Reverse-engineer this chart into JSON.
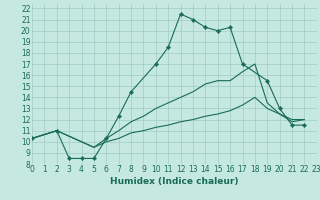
{
  "bg_color": "#c5e8e0",
  "line_color": "#1a6b58",
  "grid_color": "#a0ccc4",
  "xlabel": "Humidex (Indice chaleur)",
  "xlim": [
    0,
    23
  ],
  "ylim": [
    8,
    22.4
  ],
  "xticks": [
    0,
    1,
    2,
    3,
    4,
    5,
    6,
    7,
    8,
    9,
    10,
    11,
    12,
    13,
    14,
    15,
    16,
    17,
    18,
    19,
    20,
    21,
    22,
    23
  ],
  "yticks": [
    8,
    9,
    10,
    11,
    12,
    13,
    14,
    15,
    16,
    17,
    18,
    19,
    20,
    21,
    22
  ],
  "line1_x": [
    0,
    2,
    3,
    4,
    5,
    6,
    7,
    8,
    10,
    11,
    12,
    13,
    14,
    15,
    16,
    17,
    19,
    20,
    21,
    22
  ],
  "line1_y": [
    10.3,
    11.0,
    8.5,
    8.5,
    8.5,
    10.3,
    12.3,
    14.5,
    17.0,
    18.5,
    21.5,
    21.0,
    20.3,
    20.0,
    20.3,
    17.0,
    15.5,
    13.0,
    11.5,
    11.5
  ],
  "line2_x": [
    0,
    2,
    5,
    6,
    7,
    8,
    9,
    10,
    11,
    12,
    13,
    14,
    15,
    16,
    17,
    18,
    19,
    20,
    21,
    22
  ],
  "line2_y": [
    10.3,
    11.0,
    9.5,
    10.3,
    11.0,
    11.8,
    12.3,
    13.0,
    13.5,
    14.0,
    14.5,
    15.2,
    15.5,
    15.5,
    16.3,
    17.0,
    13.5,
    12.5,
    12.0,
    12.0
  ],
  "line3_x": [
    0,
    2,
    5,
    6,
    7,
    8,
    9,
    10,
    11,
    12,
    13,
    14,
    15,
    16,
    17,
    18,
    19,
    20,
    21,
    22
  ],
  "line3_y": [
    10.3,
    11.0,
    9.5,
    10.0,
    10.3,
    10.8,
    11.0,
    11.3,
    11.5,
    11.8,
    12.0,
    12.3,
    12.5,
    12.8,
    13.3,
    14.0,
    13.0,
    12.5,
    11.8,
    12.0
  ],
  "fontsize_label": 6.5,
  "fontsize_tick": 5.5
}
